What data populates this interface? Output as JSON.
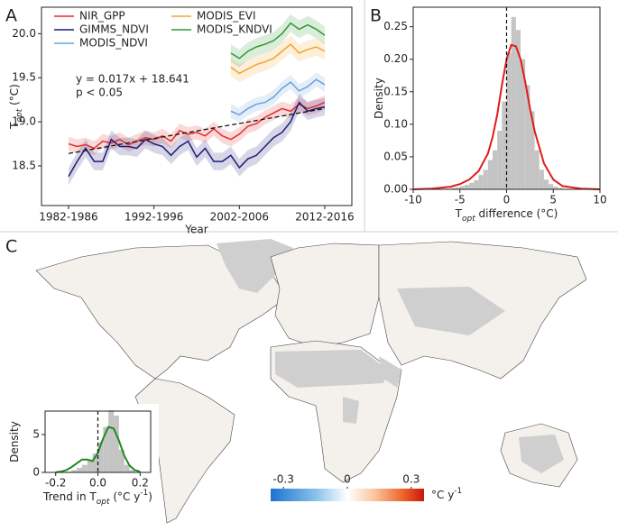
{
  "panel_labels": [
    "A",
    "B",
    "C"
  ],
  "chart_data": [
    {
      "type": "line",
      "xlabel": "Year",
      "ylabel": [
        {
          "text": "T"
        },
        {
          "text": "opt",
          "script": "sub"
        },
        {
          "text": " (°C)"
        }
      ],
      "categories": [
        "1982-1986",
        null,
        null,
        null,
        null,
        null,
        null,
        null,
        null,
        null,
        "1992-1996",
        null,
        null,
        null,
        null,
        null,
        null,
        null,
        null,
        null,
        "2002-2006",
        null,
        null,
        null,
        null,
        null,
        null,
        null,
        null,
        null,
        "2012-2016"
      ],
      "ylim": [
        18.05,
        20.3
      ],
      "yticks": [
        18.5,
        {
          "value": 19,
          "label": "19.0"
        },
        19.5,
        {
          "value": 20,
          "label": "20.0"
        }
      ],
      "series": [
        {
          "name": "NIR_GPP",
          "color": "#e32c2c",
          "error": 0.08,
          "values": [
            18.75,
            18.72,
            18.74,
            18.7,
            18.78,
            18.76,
            18.8,
            18.74,
            18.78,
            18.82,
            18.8,
            18.84,
            18.78,
            18.9,
            18.86,
            18.88,
            18.84,
            18.92,
            18.84,
            18.8,
            18.86,
            18.95,
            18.98,
            19.05,
            19.1,
            19.15,
            19.12,
            19.2,
            19.15,
            19.18,
            19.22
          ]
        },
        {
          "name": "GIMMS_NDVI",
          "color": "#1c1c78",
          "error": 0.1,
          "values": [
            18.38,
            18.55,
            18.7,
            18.55,
            18.55,
            18.8,
            18.72,
            18.72,
            18.7,
            18.8,
            18.75,
            18.72,
            18.62,
            18.72,
            18.78,
            18.6,
            18.7,
            18.55,
            18.55,
            18.62,
            18.48,
            18.58,
            18.62,
            18.72,
            18.82,
            18.88,
            19.0,
            19.22,
            19.12,
            19.15,
            19.17
          ]
        },
        {
          "name": "MODIS_NDVI",
          "color": "#6a9fe0",
          "error": 0.08,
          "values": [
            null,
            null,
            null,
            null,
            null,
            null,
            null,
            null,
            null,
            null,
            null,
            null,
            null,
            null,
            null,
            null,
            null,
            null,
            null,
            19.12,
            19.08,
            19.15,
            19.2,
            19.22,
            19.28,
            19.38,
            19.45,
            19.35,
            19.4,
            19.48,
            19.42
          ]
        },
        {
          "name": "MODIS_EVI",
          "color": "#f4a52a",
          "error": 0.1,
          "values": [
            null,
            null,
            null,
            null,
            null,
            null,
            null,
            null,
            null,
            null,
            null,
            null,
            null,
            null,
            null,
            null,
            null,
            null,
            null,
            19.62,
            19.55,
            19.6,
            19.65,
            19.68,
            19.72,
            19.8,
            19.88,
            19.78,
            19.82,
            19.85,
            19.8
          ]
        },
        {
          "name": "MODIS_KNDVI",
          "color": "#2e9a34",
          "error": 0.1,
          "values": [
            null,
            null,
            null,
            null,
            null,
            null,
            null,
            null,
            null,
            null,
            null,
            null,
            null,
            null,
            null,
            null,
            null,
            null,
            null,
            19.78,
            19.72,
            19.8,
            19.85,
            19.88,
            19.92,
            20.0,
            20.12,
            20.05,
            20.1,
            20.05,
            19.98
          ]
        }
      ],
      "trend": {
        "slope": 0.017,
        "intercept": 18.641
      },
      "annotations": [
        "y = 0.017x + 18.641",
        "p < 0.05"
      ]
    },
    {
      "type": "histogram",
      "xlabel": [
        {
          "text": "T"
        },
        {
          "text": "opt",
          "script": "sub"
        },
        {
          "text": " difference (°C)"
        }
      ],
      "ylabel": [
        {
          "text": "Density"
        }
      ],
      "xlim": [
        -10,
        10
      ],
      "xticks": [
        -10,
        -5,
        0,
        5,
        10
      ],
      "ylim": [
        0,
        0.28
      ],
      "yticks": [
        {
          "value": 0,
          "label": "0.00"
        },
        {
          "value": 0.05,
          "label": "0.05"
        },
        {
          "value": 0.1,
          "label": "0.10"
        },
        {
          "value": 0.15,
          "label": "0.15"
        },
        {
          "value": 0.2,
          "label": "0.20"
        },
        {
          "value": 0.25,
          "label": "0.25"
        }
      ],
      "color": "#c4c4c4",
      "bins": [
        -6,
        -5.5,
        -5,
        -4.5,
        -4,
        -3.5,
        -3,
        -2.5,
        -2,
        -1.5,
        -1,
        -0.5,
        0,
        0.5,
        1,
        1.5,
        2,
        2.5,
        3,
        3.5,
        4,
        4.5,
        5,
        5.5,
        6
      ],
      "values": [
        0.002,
        0.003,
        0.005,
        0.007,
        0.01,
        0.014,
        0.022,
        0.03,
        0.045,
        0.06,
        0.09,
        0.135,
        0.21,
        0.265,
        0.245,
        0.2,
        0.16,
        0.12,
        0.06,
        0.03,
        0.015,
        0.008,
        0.004,
        0.002
      ],
      "curve": {
        "color": "#e01b1b",
        "x": [
          -10,
          -8,
          -6,
          -5,
          -4,
          -3,
          -2,
          -1.5,
          -1,
          -0.5,
          0,
          0.5,
          1,
          1.5,
          2,
          2.5,
          3,
          4,
          5,
          6,
          8,
          10
        ],
        "values": [
          0,
          0.001,
          0.004,
          0.008,
          0.015,
          0.028,
          0.055,
          0.08,
          0.115,
          0.16,
          0.2,
          0.222,
          0.22,
          0.2,
          0.165,
          0.125,
          0.09,
          0.04,
          0.015,
          0.005,
          0.001,
          0
        ]
      },
      "vline": 0
    },
    {
      "type": "histogram",
      "xlabel": [
        {
          "text": "Trend in T"
        },
        {
          "text": "opt",
          "script": "sub"
        },
        {
          "text": " (°C y"
        },
        {
          "text": "-1",
          "script": "sup"
        },
        {
          "text": ")"
        }
      ],
      "ylabel": [
        {
          "text": "Density"
        }
      ],
      "xlim": [
        -0.25,
        0.25
      ],
      "xticks": [
        -0.2,
        {
          "value": 0,
          "label": "0.0"
        },
        0.2
      ],
      "ylim": [
        0,
        8.1
      ],
      "yticks": [
        0,
        5
      ],
      "color": "#c4c4c4",
      "bins": [
        -0.2,
        -0.175,
        -0.15,
        -0.125,
        -0.1,
        -0.075,
        -0.05,
        -0.025,
        0,
        0.025,
        0.05,
        0.075,
        0.1,
        0.125,
        0.15,
        0.175,
        0.2
      ],
      "values": [
        0,
        0,
        0.1,
        0.3,
        0.6,
        1,
        1.6,
        2.5,
        4,
        6,
        8.2,
        7.5,
        3,
        1,
        0.3,
        0
      ],
      "curve": {
        "color": "#1f8a1f",
        "x": [
          -0.2,
          -0.175,
          -0.15,
          -0.125,
          -0.1,
          -0.075,
          -0.05,
          -0.025,
          0,
          0.025,
          0.05,
          0.075,
          0.1,
          0.125,
          0.15,
          0.175,
          0.2
        ],
        "values": [
          0.02,
          0.1,
          0.3,
          0.7,
          1.2,
          1.7,
          1.7,
          1.5,
          2.6,
          4.5,
          6.0,
          5.8,
          4.2,
          2.2,
          0.9,
          0.3,
          0.1
        ]
      },
      "vline": 0
    },
    {
      "type": "colorbar",
      "xlim": [
        -0.36,
        0.36
      ],
      "xticks": [
        -0.3,
        0,
        0.3
      ],
      "unit": [
        {
          "text": "°C y"
        },
        {
          "text": "-1",
          "script": "sup"
        }
      ]
    }
  ]
}
